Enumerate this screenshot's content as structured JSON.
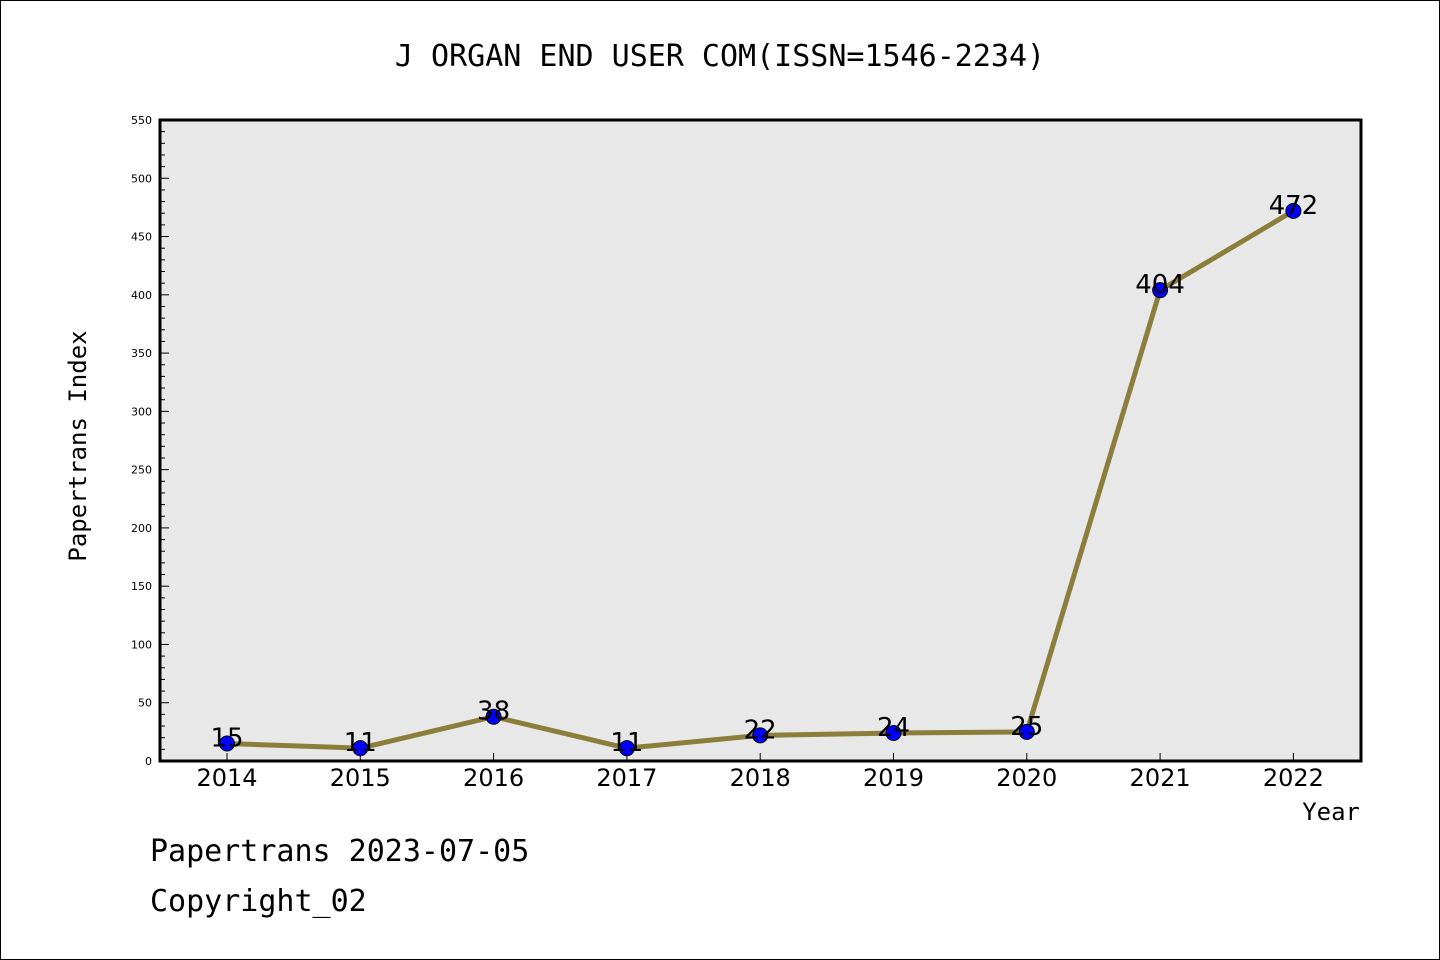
{
  "chart_data": {
    "type": "line",
    "title": "J ORGAN END USER COM(ISSN=1546-2234)",
    "xlabel": "Year",
    "ylabel": "Papertrans Index",
    "categories": [
      "2014",
      "2015",
      "2016",
      "2017",
      "2018",
      "2019",
      "2020",
      "2021",
      "2022"
    ],
    "values": [
      15,
      11,
      38,
      11,
      22,
      24,
      25,
      404,
      472
    ],
    "data_labels": [
      "15",
      "11",
      "38",
      "11",
      "22",
      "24",
      "25",
      "404",
      "472"
    ],
    "ylim": [
      0,
      550
    ],
    "y_ticks": [
      "0",
      "50",
      "100",
      "150",
      "200",
      "250",
      "300",
      "350",
      "400",
      "450",
      "500",
      "550"
    ],
    "grid": false,
    "legend": "none",
    "colors": {
      "line": "#8b7d3a",
      "marker": "#0000ff",
      "plot_background": "#e8e8e8"
    }
  },
  "footer": {
    "date_text": "Papertrans 2023-07-05",
    "copyright_text": "Copyright_02"
  }
}
